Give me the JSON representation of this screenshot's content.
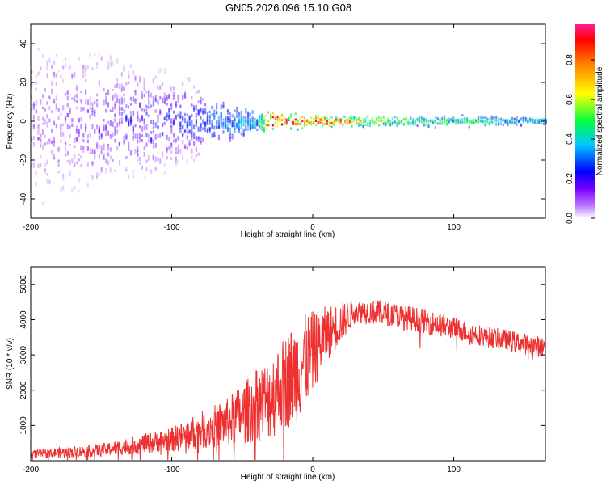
{
  "title": "GN05.2026.096.15.10.G08",
  "chart_data": [
    {
      "type": "heatmap",
      "xlabel": "Height of straight line (km)",
      "ylabel": "Frequency (Hz)",
      "xlim": [
        -200,
        165
      ],
      "ylim": [
        -50,
        50
      ],
      "xticks": [
        -200,
        -100,
        0,
        100
      ],
      "yticks": [
        -40,
        -20,
        0,
        20,
        40
      ],
      "colorbar": {
        "label": "Normalized spectral amplitude",
        "range": [
          0,
          0.98
        ],
        "ticks": [
          0.0,
          0.2,
          0.4,
          0.6,
          0.8
        ]
      },
      "ridge": {
        "description_free": true,
        "center_hz": 0,
        "spread_hz": [
          {
            "x": -200,
            "hz": 30
          },
          {
            "x": -80,
            "hz": 12
          },
          {
            "x": -35,
            "hz": 6
          },
          {
            "x": 0,
            "hz": 3
          },
          {
            "x": 165,
            "hz": 2.5
          }
        ],
        "amplitude": [
          {
            "x": -200,
            "value": 0.12
          },
          {
            "x": -100,
            "value": 0.25
          },
          {
            "x": -40,
            "value": 0.4
          },
          {
            "x": -30,
            "value": 0.9
          },
          {
            "x": 15,
            "value": 0.85
          },
          {
            "x": 60,
            "value": 0.55
          },
          {
            "x": 165,
            "value": 0.42
          }
        ]
      }
    },
    {
      "type": "line",
      "xlabel": "Height of straight line (km)",
      "ylabel": "SNR (10 * v/v)",
      "xlim": [
        -200,
        165
      ],
      "ylim": [
        0,
        5500
      ],
      "xticks": [
        -200,
        -100,
        0,
        100
      ],
      "yticks": [
        1000,
        2000,
        3000,
        4000,
        5000
      ],
      "color": "#ee3030",
      "envelope": [
        {
          "x": -200,
          "mean": 180,
          "noise": 120
        },
        {
          "x": -150,
          "mean": 300,
          "noise": 180
        },
        {
          "x": -100,
          "mean": 600,
          "noise": 350
        },
        {
          "x": -60,
          "mean": 1100,
          "noise": 700
        },
        {
          "x": -30,
          "mean": 1800,
          "noise": 1200
        },
        {
          "x": -10,
          "mean": 2600,
          "noise": 1500
        },
        {
          "x": 10,
          "mean": 3600,
          "noise": 800
        },
        {
          "x": 30,
          "mean": 4250,
          "noise": 350
        },
        {
          "x": 50,
          "mean": 4200,
          "noise": 350
        },
        {
          "x": 80,
          "mean": 3950,
          "noise": 350
        },
        {
          "x": 120,
          "mean": 3550,
          "noise": 300
        },
        {
          "x": 165,
          "mean": 3200,
          "noise": 300
        }
      ]
    }
  ]
}
